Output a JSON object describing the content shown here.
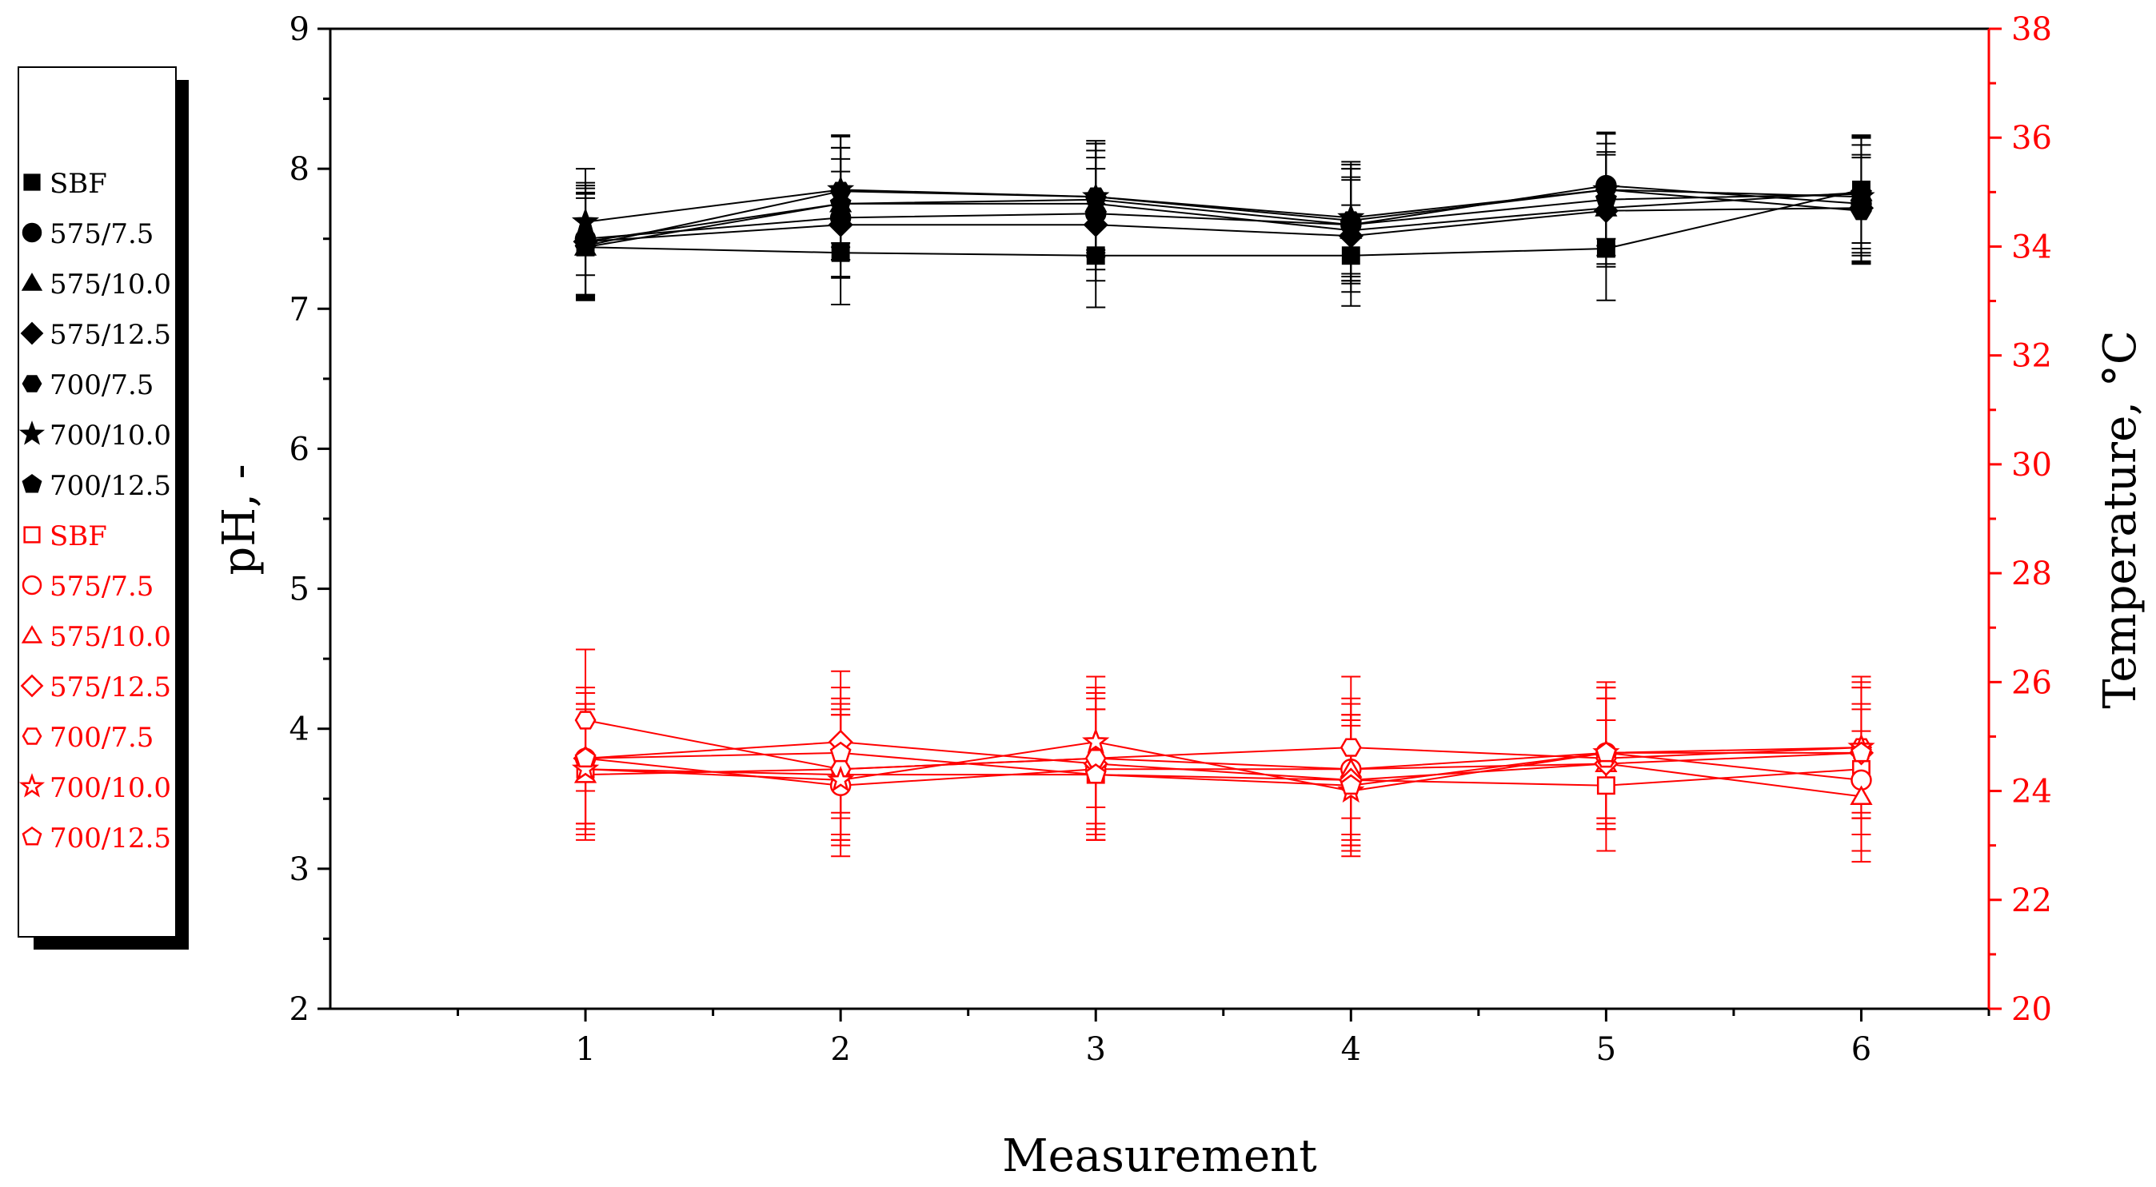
{
  "chart_data": {
    "type": "line",
    "xlabel": "Measurement",
    "ylabel_left": "pH, -",
    "ylabel_right": "Temperature, °C",
    "x": [
      1,
      2,
      3,
      4,
      5,
      6
    ],
    "x_ticks": [
      "1",
      "2",
      "3",
      "4",
      "5",
      "6"
    ],
    "xlim": [
      0,
      6.5
    ],
    "ylim_left": [
      2,
      9
    ],
    "ylim_right": [
      20,
      38
    ],
    "y_ticks_left": [
      "2",
      "3",
      "4",
      "5",
      "6",
      "7",
      "8",
      "9"
    ],
    "y_ticks_right": [
      "20",
      "22",
      "24",
      "26",
      "28",
      "30",
      "32",
      "34",
      "36",
      "38"
    ],
    "colors": {
      "ph": "#000000",
      "temperature": "#ff0000"
    },
    "legend_position": "left, outside plot",
    "ph_series": [
      {
        "name": "SBF",
        "marker": "square",
        "values": [
          7.44,
          7.4,
          7.38,
          7.38,
          7.43,
          7.85
        ],
        "err": [
          0.35,
          0.37,
          0.37,
          0.36,
          0.37,
          0.38
        ]
      },
      {
        "name": "575/7.5",
        "marker": "circle",
        "values": [
          7.5,
          7.65,
          7.68,
          7.6,
          7.88,
          7.75
        ],
        "err": [
          0.4,
          0.42,
          0.4,
          0.4,
          0.38,
          0.42
        ]
      },
      {
        "name": "575/10.0",
        "marker": "triangle",
        "values": [
          7.44,
          7.75,
          7.75,
          7.56,
          7.72,
          7.83
        ],
        "err": [
          0.38,
          0.4,
          0.38,
          0.38,
          0.4,
          0.4
        ]
      },
      {
        "name": "575/12.5",
        "marker": "diamond",
        "values": [
          7.48,
          7.6,
          7.6,
          7.52,
          7.7,
          7.72
        ],
        "err": [
          0.38,
          0.38,
          0.4,
          0.4,
          0.4,
          0.38
        ]
      },
      {
        "name": "700/7.5",
        "marker": "hexagon",
        "values": [
          7.45,
          7.84,
          7.8,
          7.63,
          7.85,
          7.7
        ],
        "err": [
          0.38,
          0.4,
          0.38,
          0.4,
          0.4,
          0.38
        ]
      },
      {
        "name": "700/10.0",
        "marker": "star",
        "values": [
          7.62,
          7.85,
          7.8,
          7.65,
          7.85,
          7.8
        ],
        "err": [
          0.38,
          0.38,
          0.4,
          0.4,
          0.4,
          0.42
        ]
      },
      {
        "name": "700/12.5",
        "marker": "pentagon",
        "values": [
          7.48,
          7.75,
          7.78,
          7.6,
          7.78,
          7.82
        ],
        "err": [
          0.4,
          0.4,
          0.4,
          0.4,
          0.4,
          0.42
        ]
      }
    ],
    "temperature_series": [
      {
        "name": "SBF",
        "marker": "square",
        "values": [
          24.4,
          24.3,
          24.3,
          24.2,
          24.1,
          24.4
        ],
        "err": [
          1.2,
          1.2,
          1.2,
          1.2,
          1.2,
          1.2
        ]
      },
      {
        "name": "575/7.5",
        "marker": "circle",
        "values": [
          24.6,
          24.1,
          24.4,
          24.4,
          24.7,
          24.2
        ],
        "err": [
          1.3,
          1.3,
          1.3,
          1.3,
          1.3,
          1.3
        ]
      },
      {
        "name": "575/10.0",
        "marker": "triangle",
        "values": [
          24.3,
          24.4,
          24.6,
          24.4,
          24.5,
          23.9
        ],
        "err": [
          1.2,
          1.2,
          1.2,
          1.2,
          1.2,
          1.2
        ]
      },
      {
        "name": "575/12.5",
        "marker": "diamond",
        "values": [
          24.6,
          24.9,
          24.5,
          24.2,
          24.5,
          24.7
        ],
        "err": [
          1.2,
          1.3,
          1.3,
          1.2,
          1.2,
          1.2
        ]
      },
      {
        "name": "700/7.5",
        "marker": "hexagon",
        "values": [
          25.3,
          24.4,
          24.6,
          24.8,
          24.6,
          24.8
        ],
        "err": [
          1.3,
          1.3,
          1.3,
          1.3,
          1.3,
          1.3
        ]
      },
      {
        "name": "700/10.0",
        "marker": "star",
        "values": [
          24.4,
          24.2,
          24.9,
          24.0,
          24.7,
          24.8
        ],
        "err": [
          1.2,
          1.2,
          1.2,
          1.2,
          1.2,
          1.2
        ]
      },
      {
        "name": "700/12.5",
        "marker": "pentagon",
        "values": [
          24.6,
          24.7,
          24.3,
          24.1,
          24.7,
          24.7
        ],
        "err": [
          1.2,
          1.2,
          1.2,
          1.2,
          1.2,
          1.2
        ]
      }
    ]
  }
}
